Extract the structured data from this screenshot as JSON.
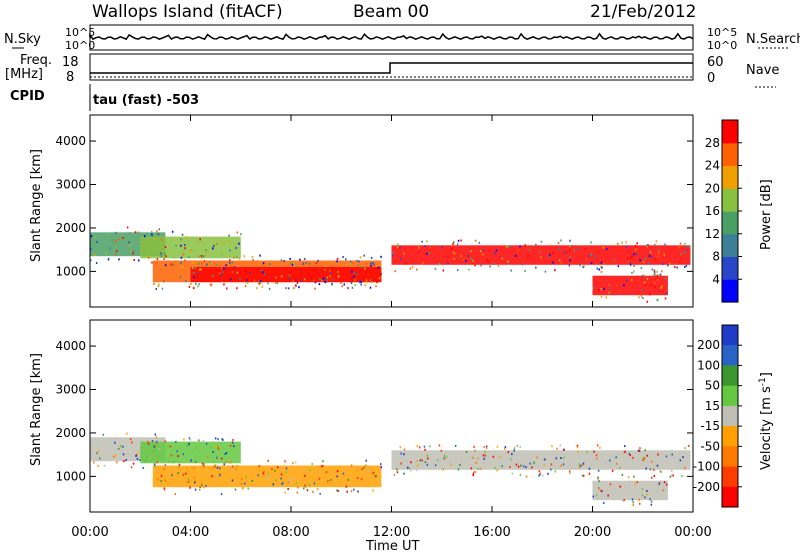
{
  "header": {
    "station": "Wallops Island (fitACF)",
    "beam": "Beam 00",
    "date": "21/Feb/2012"
  },
  "left_labels": {
    "nsky": "N.Sky",
    "freq_line1": "Freq.",
    "freq_line2": "[MHz]",
    "cpid": "CPID",
    "nsky_top": "10^5",
    "nsky_bot": "10^0",
    "freq_top": "18",
    "freq_bot": "8"
  },
  "right_labels": {
    "nsearch": "N.Search",
    "nave": "Nave",
    "ns_top": "10^5",
    "ns_bot": "10^0",
    "nave_top": "60",
    "nave_bot": "0"
  },
  "cpid_text": "tau (fast) -503",
  "colors": {
    "power_scale": [
      "#0000ff",
      "#2846c8",
      "#3c7f96",
      "#4aa064",
      "#88c040",
      "#f0a000",
      "#ff6000",
      "#ff0000"
    ],
    "velocity_scale": [
      "#1e3cc8",
      "#2864c8",
      "#3c9630",
      "#64c840",
      "#bebeb4",
      "#ffa000",
      "#ff7800",
      "#ff3c00",
      "#ff0000"
    ],
    "ground_scatter": "#bebeb4"
  },
  "chart_data": [
    {
      "type": "heatmap",
      "title": "",
      "xlabel": "",
      "ylabel": "Slant Range [km]",
      "x_ticks": [
        "00:00",
        "04:00",
        "08:00",
        "12:00",
        "16:00",
        "20:00",
        "00:00"
      ],
      "y_ticks": [
        "1000",
        "2000",
        "3000",
        "4000"
      ],
      "ylim": [
        180,
        4600
      ],
      "colorbar_label": "Power [dB]",
      "colorbar_ticks": [
        "4",
        "8",
        "12",
        "16",
        "20",
        "24",
        "28"
      ],
      "colorbar_range": [
        0,
        32
      ],
      "echo_bands": [
        {
          "t": [
            0.0,
            3.0
          ],
          "range": [
            1350,
            1900
          ],
          "power": 12
        },
        {
          "t": [
            2.0,
            6.0
          ],
          "range": [
            1300,
            1800
          ],
          "power": 18
        },
        {
          "t": [
            2.5,
            11.6
          ],
          "range": [
            750,
            1250
          ],
          "power": 24
        },
        {
          "t": [
            4.0,
            11.6
          ],
          "range": [
            750,
            1100
          ],
          "power": 30
        },
        {
          "t": [
            12.0,
            23.9
          ],
          "range": [
            1150,
            1600
          ],
          "power": 28
        },
        {
          "t": [
            20.0,
            23.0
          ],
          "range": [
            450,
            900
          ],
          "power": 30
        }
      ]
    },
    {
      "type": "heatmap",
      "title": "",
      "xlabel": "Time UT",
      "ylabel": "Slant Range [km]",
      "x_ticks": [
        "00:00",
        "04:00",
        "08:00",
        "12:00",
        "16:00",
        "20:00",
        "00:00"
      ],
      "y_ticks": [
        "1000",
        "2000",
        "3000",
        "4000"
      ],
      "ylim": [
        180,
        4600
      ],
      "colorbar_label": "Velocity [m s^-1]",
      "colorbar_ticks": [
        "200",
        "100",
        "50",
        "15",
        "-15",
        "-50",
        "-100",
        "-200"
      ],
      "colorbar_range": [
        -250,
        250
      ],
      "echo_bands": [
        {
          "t": [
            0.0,
            3.0
          ],
          "range": [
            1350,
            1900
          ],
          "velocity": 0
        },
        {
          "t": [
            2.0,
            6.0
          ],
          "range": [
            1300,
            1800
          ],
          "velocity": 60
        },
        {
          "t": [
            2.5,
            11.6
          ],
          "range": [
            750,
            1250
          ],
          "velocity": -60
        },
        {
          "t": [
            12.0,
            23.9
          ],
          "range": [
            1150,
            1600
          ],
          "velocity": 0
        },
        {
          "t": [
            20.0,
            23.0
          ],
          "range": [
            450,
            900
          ],
          "velocity": 0
        }
      ]
    }
  ]
}
